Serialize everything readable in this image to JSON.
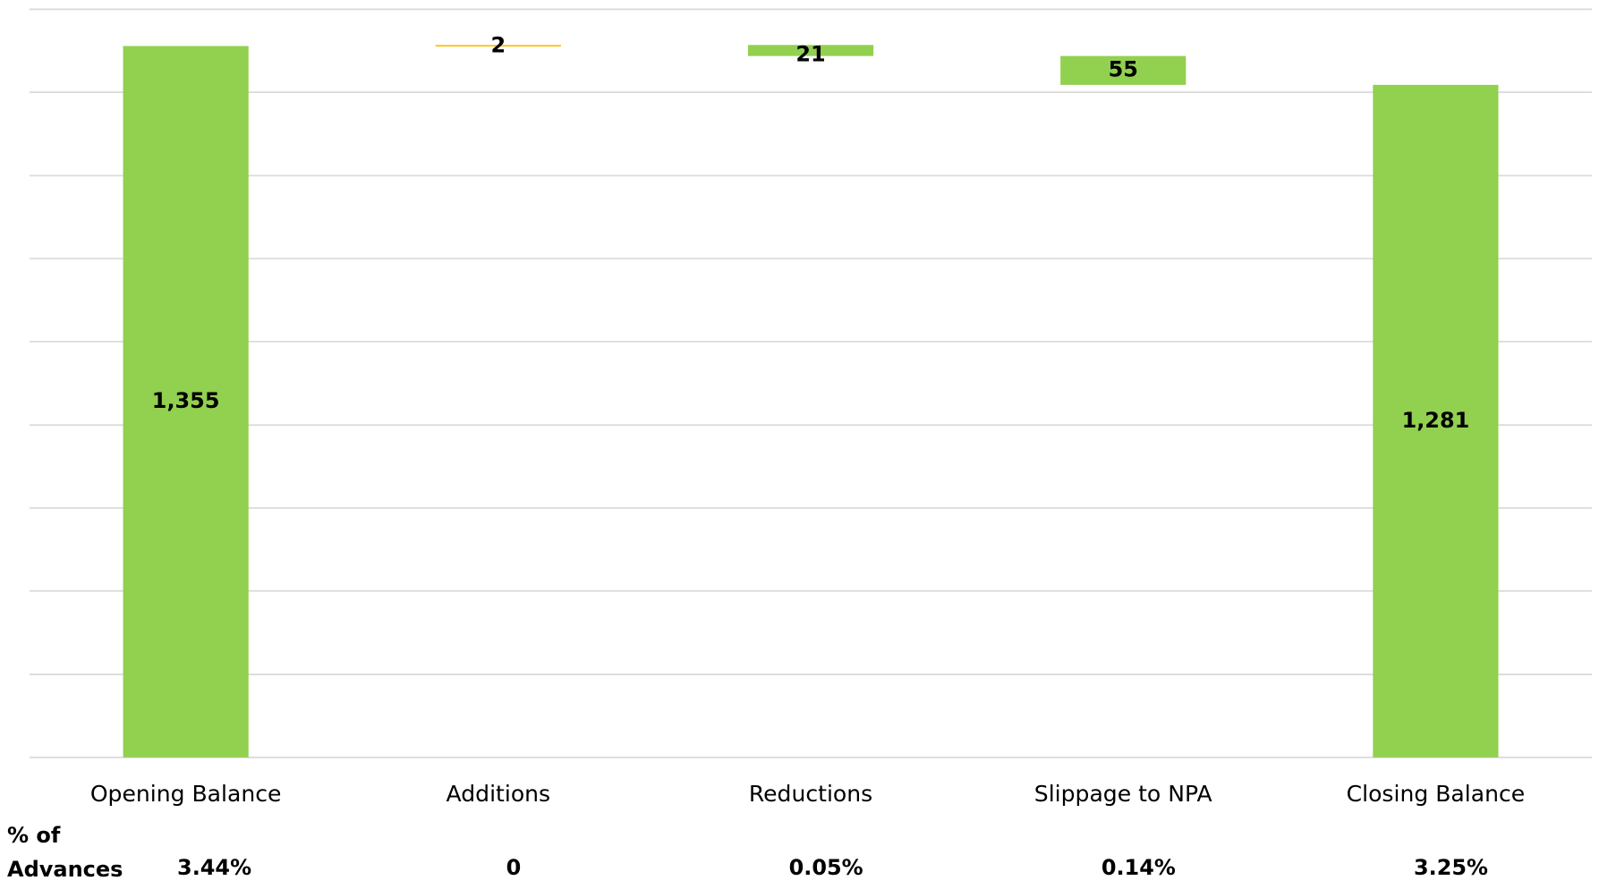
{
  "chart_data": {
    "type": "waterfall",
    "categories": [
      "Opening Balance",
      "Additions",
      "Reductions",
      "Slippage to NPA",
      "Closing Balance"
    ],
    "values": [
      1355,
      2,
      21,
      55,
      1281
    ],
    "value_labels": [
      "1,355",
      "2",
      "21",
      "55",
      "1,281"
    ],
    "kinds": [
      "total",
      "increase",
      "decrease",
      "decrease",
      "total"
    ],
    "colors": [
      "#92d050",
      "#ffc000",
      "#92d050",
      "#92d050",
      "#92d050"
    ],
    "ylim": [
      0,
      1425
    ],
    "yticks": [
      0,
      158,
      317,
      475,
      633,
      792,
      950,
      1108,
      1267,
      1425
    ],
    "grid": true,
    "row_title": "% of Advances",
    "row_values": [
      "3.44%",
      "0",
      "0.05%",
      "0.14%",
      "3.25%"
    ]
  }
}
